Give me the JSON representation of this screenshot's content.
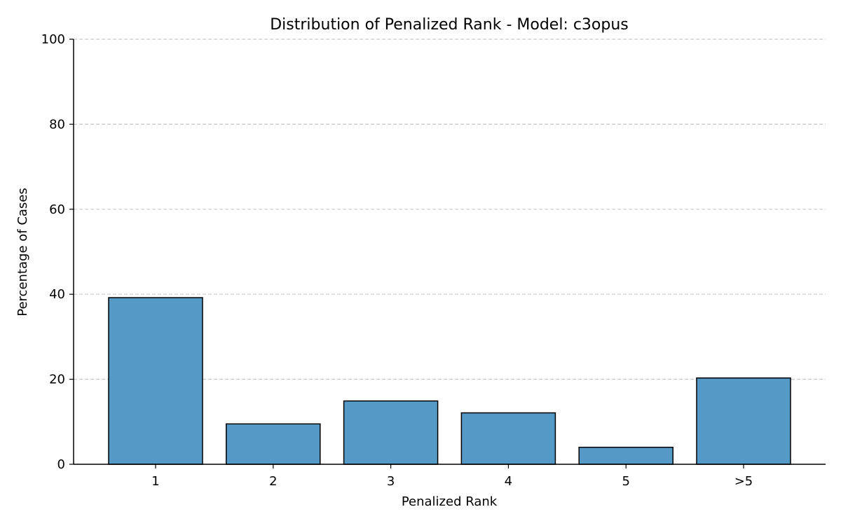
{
  "chart_data": {
    "type": "bar",
    "title": "Distribution of Penalized Rank - Model: c3opus",
    "xlabel": "Penalized Rank",
    "ylabel": "Percentage of Cases",
    "categories": [
      "1",
      "2",
      "3",
      "4",
      "5",
      ">5"
    ],
    "values": [
      39.2,
      9.5,
      14.9,
      12.1,
      4.0,
      20.3
    ],
    "ylim": [
      0,
      100
    ],
    "yticks": [
      0,
      20,
      40,
      60,
      80,
      100
    ],
    "grid": "horizontal dashed",
    "legend": "none",
    "colors": {
      "bar_fill": "#5599c7",
      "bar_edge": "#000000",
      "grid": "#c8c8c8",
      "axis": "#000000"
    }
  }
}
